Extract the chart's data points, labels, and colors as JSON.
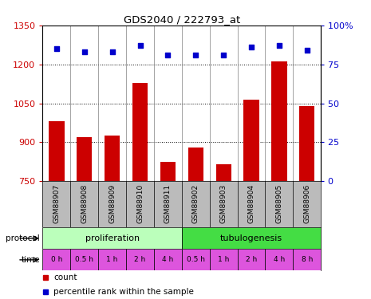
{
  "title": "GDS2040 / 222793_at",
  "samples": [
    "GSM88907",
    "GSM88908",
    "GSM88909",
    "GSM88910",
    "GSM88911",
    "GSM88902",
    "GSM88903",
    "GSM88904",
    "GSM88905",
    "GSM88906"
  ],
  "counts": [
    980,
    920,
    925,
    1130,
    825,
    880,
    815,
    1065,
    1210,
    1040
  ],
  "percentile_ranks": [
    85,
    83,
    83,
    87,
    81,
    81,
    81,
    86,
    87,
    84
  ],
  "ylim_left": [
    750,
    1350
  ],
  "ylim_right": [
    0,
    100
  ],
  "yticks_left": [
    750,
    900,
    1050,
    1200,
    1350
  ],
  "yticks_right": [
    0,
    25,
    50,
    75,
    100
  ],
  "bar_color": "#cc0000",
  "dot_color": "#0000cc",
  "protocol_labels": [
    "proliferation",
    "tubulogenesis"
  ],
  "protocol_colors": [
    "#bbffbb",
    "#44dd44"
  ],
  "time_labels": [
    "0 h",
    "0.5 h",
    "1 h",
    "2 h",
    "4 h",
    "0.5 h",
    "1 h",
    "2 h",
    "4 h",
    "8 h"
  ],
  "time_color": "#dd55dd",
  "gsm_bg_color": "#bbbbbb",
  "right_axis_color": "#0000cc",
  "left_axis_color": "#cc0000",
  "fig_width": 4.65,
  "fig_height": 3.75,
  "dpi": 100
}
